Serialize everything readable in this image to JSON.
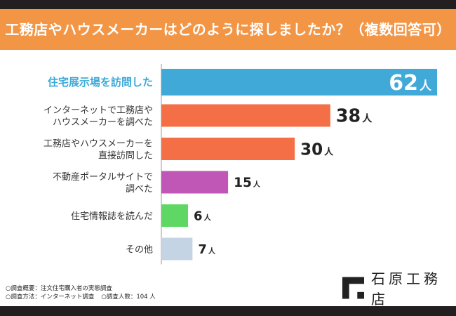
{
  "header": {
    "title": "工務店やハウスメーカーはどのように探しましたか？（複数回答可）"
  },
  "chart_data": {
    "type": "bar",
    "orientation": "horizontal",
    "title": "工務店やハウスメーカーはどのように探しましたか？（複数回答可）",
    "unit": "人",
    "categories": [
      [
        "住宅展示場を訪問した"
      ],
      [
        "インターネットで工務店や",
        "ハウスメーカーを調べた"
      ],
      [
        "工務店やハウスメーカーを",
        "直接訪問した"
      ],
      [
        "不動産ポータルサイトで",
        "調べた"
      ],
      [
        "住宅情報誌を読んだ"
      ],
      [
        "その他"
      ]
    ],
    "values": [
      62,
      38,
      30,
      15,
      6,
      7
    ],
    "colors": [
      "#41a9d7",
      "#f46f46",
      "#f46f46",
      "#c057b7",
      "#5ed765",
      "#c4d4e4"
    ],
    "xlim": [
      0,
      62
    ]
  },
  "footer": {
    "line1": "○調査概要：注文住宅購入者の実態調査",
    "line2a": "○調査方法：インターネット調査",
    "line2b": "○調査人数：104 人"
  },
  "logo": {
    "text": "石原工務店"
  }
}
